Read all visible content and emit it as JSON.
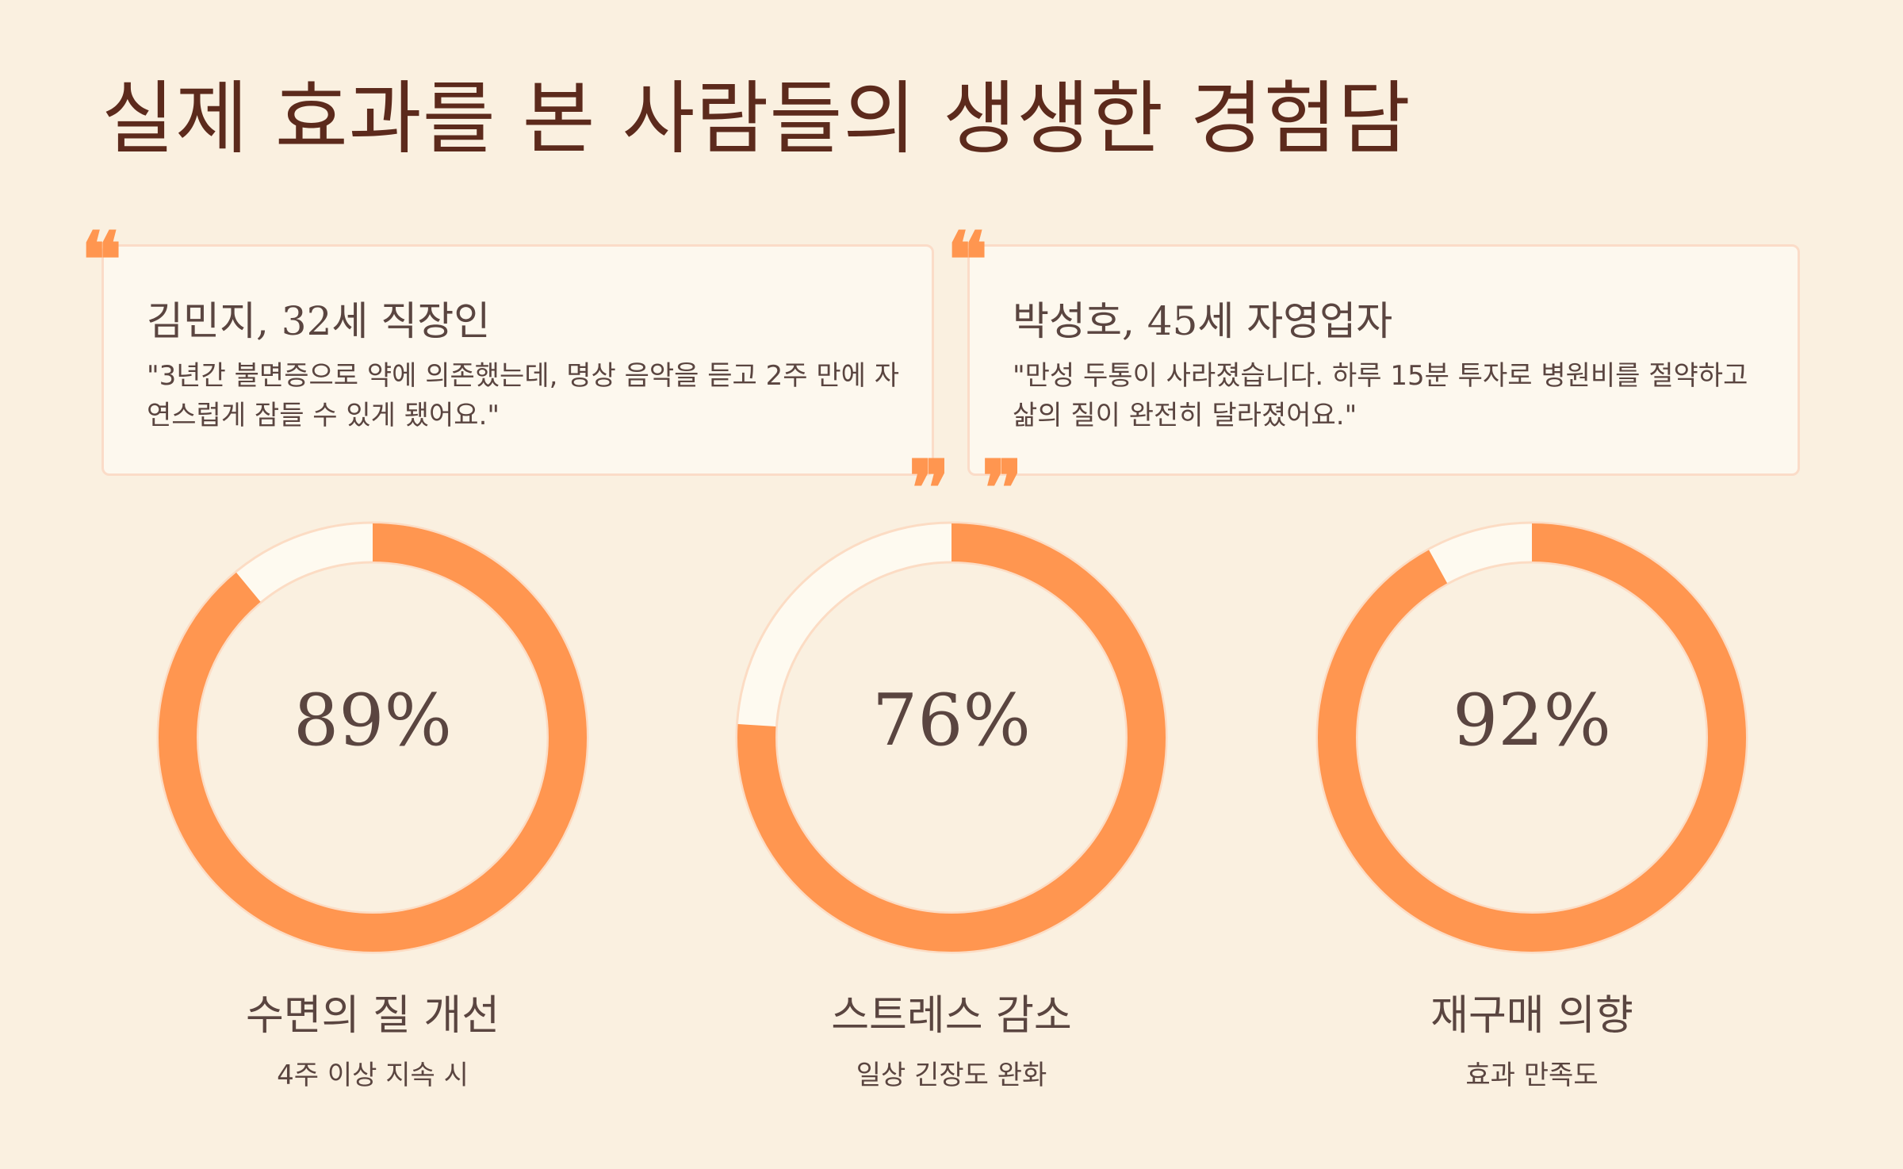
{
  "title": "실제 효과를 본 사람들의 생생한 경험담",
  "colors": {
    "background": "#faf0e0",
    "accent": "#ff9650",
    "ring_track": "#fefaf0",
    "ring_border": "#fcdcc4",
    "title": "#5c2a1c",
    "text": "#5a4540"
  },
  "quote_marks": {
    "open": "❝",
    "close": "❞"
  },
  "testimonials": [
    {
      "name": "김민지, 32세 직장인",
      "quote": "\"3년간 불면증으로 약에 의존했는데, 명상 음악을 듣고 2주 만에 자연스럽게 잠들 수 있게 됐어요.\""
    },
    {
      "name": "박성호, 45세 자영업자",
      "quote": "\"만성 두통이 사라졌습니다. 하루 15분 투자로 병원비를 절약하고 삶의 질이 완전히 달라졌어요.\""
    }
  ],
  "chart_data": {
    "type": "pie",
    "charts": [
      {
        "value": 89,
        "display": "89%",
        "label": "수면의 질 개선",
        "sublabel": "4주 이상 지속 시"
      },
      {
        "value": 76,
        "display": "76%",
        "label": "스트레스 감소",
        "sublabel": "일상 긴장도 완화"
      },
      {
        "value": 92,
        "display": "92%",
        "label": "재구매 의향",
        "sublabel": "효과 만족도"
      }
    ]
  }
}
